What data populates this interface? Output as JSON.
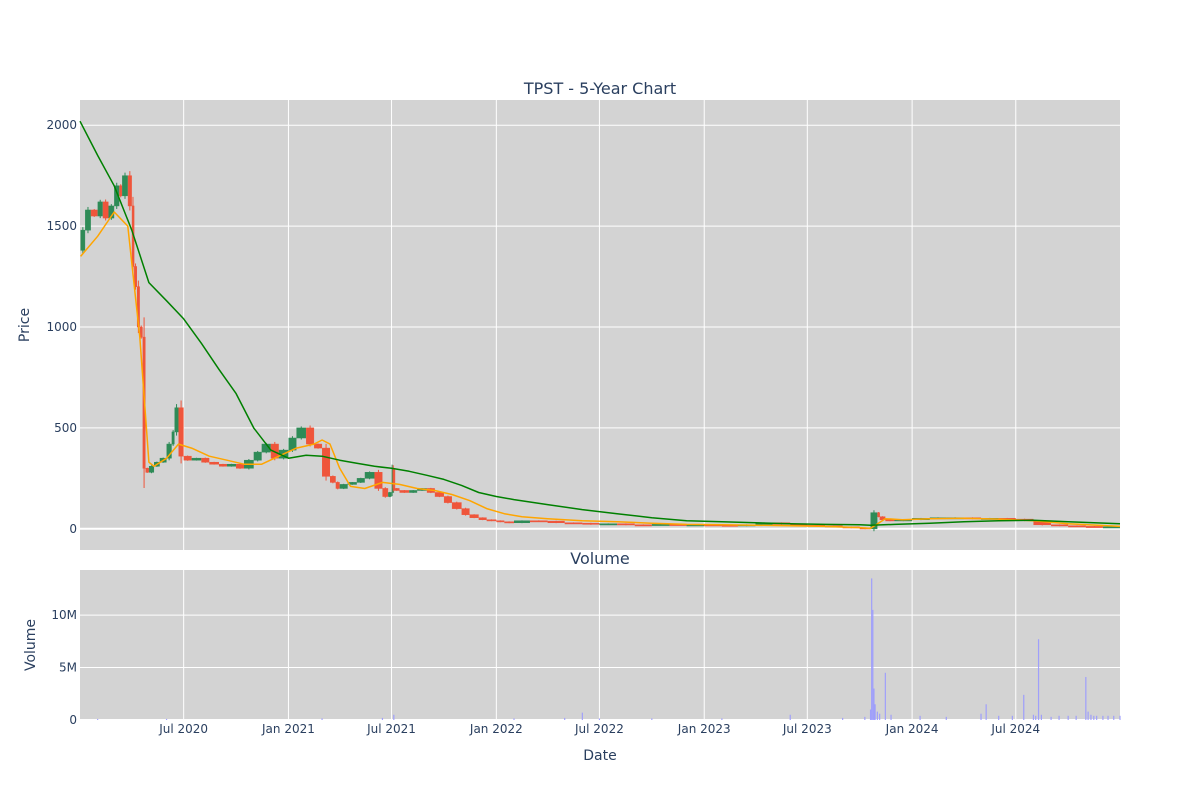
{
  "title": "TPST - 5-Year Chart",
  "volume_title": "Volume",
  "xlabel": "Date",
  "colors": {
    "plot_bg": "#d3d3d3",
    "grid": "#ffffff",
    "text": "#2a3f5f",
    "candle_up": "#2e8b57",
    "candle_down": "#ef553b",
    "ma_short": "#ffa500",
    "ma_long": "#008000",
    "volume_bar": "#9999ff"
  },
  "chart_data": [
    {
      "type": "line",
      "subtype": "candlestick-with-moving-averages",
      "title": "TPST - 5-Year Chart",
      "ylabel": "Price",
      "ylim": [
        -105,
        2125
      ],
      "yticks": [
        0,
        500,
        1000,
        1500,
        2000
      ],
      "ytick_labels": [
        "0",
        "500",
        "1000",
        "1500",
        "2000"
      ],
      "xlim": [
        "2020-01-01",
        "2024-12-31"
      ],
      "xticks": [
        "2020-07-01",
        "2021-01-01",
        "2021-07-01",
        "2022-01-01",
        "2022-07-01",
        "2023-01-01",
        "2023-07-01",
        "2024-01-01",
        "2024-07-01"
      ],
      "xtick_labels": [
        "Jul 2020",
        "Jan 2021",
        "Jul 2021",
        "Jan 2022",
        "Jul 2022",
        "Jan 2023",
        "Jul 2023",
        "Jan 2024",
        "Jul 2024"
      ],
      "grid": true,
      "series": [
        {
          "kind": "close",
          "x": [
            "2020-01-02",
            "2020-01-10",
            "2020-01-20",
            "2020-02-01",
            "2020-02-10",
            "2020-02-20",
            "2020-03-01",
            "2020-03-10",
            "2020-03-15",
            "2020-03-25",
            "2020-04-01",
            "2020-04-05",
            "2020-04-10",
            "2020-04-15",
            "2020-04-20",
            "2020-04-25",
            "2020-05-01",
            "2020-05-10",
            "2020-05-20",
            "2020-06-01",
            "2020-06-10",
            "2020-06-15",
            "2020-06-22",
            "2020-07-01",
            "2020-07-15",
            "2020-08-01",
            "2020-08-15",
            "2020-09-01",
            "2020-09-15",
            "2020-10-01",
            "2020-10-15",
            "2020-11-01",
            "2020-11-15",
            "2020-12-01",
            "2020-12-15",
            "2021-01-01",
            "2021-01-15",
            "2021-02-01",
            "2021-02-15",
            "2021-03-01",
            "2021-03-15",
            "2021-03-25",
            "2021-04-01",
            "2021-04-15",
            "2021-05-01",
            "2021-05-15",
            "2021-06-01",
            "2021-06-15",
            "2021-06-25",
            "2021-07-01",
            "2021-07-03",
            "2021-07-05",
            "2021-07-15",
            "2021-08-01",
            "2021-08-15",
            "2021-09-01",
            "2021-09-15",
            "2021-10-01",
            "2021-10-15",
            "2021-11-01",
            "2021-11-15",
            "2021-12-01",
            "2021-12-15",
            "2022-01-01",
            "2022-01-15",
            "2022-02-01",
            "2022-03-01",
            "2022-04-01",
            "2022-05-01",
            "2022-06-01",
            "2022-07-01",
            "2022-08-01",
            "2022-09-01",
            "2022-10-01",
            "2022-11-01",
            "2022-12-01",
            "2023-01-01",
            "2023-02-01",
            "2023-03-01",
            "2023-04-01",
            "2023-05-01",
            "2023-06-01",
            "2023-07-01",
            "2023-08-01",
            "2023-09-01",
            "2023-10-01",
            "2023-10-20",
            "2023-11-01",
            "2023-11-05",
            "2023-11-15",
            "2023-12-01",
            "2024-01-01",
            "2024-02-01",
            "2024-03-01",
            "2024-04-01",
            "2024-05-01",
            "2024-06-01",
            "2024-07-01",
            "2024-08-01",
            "2024-09-01",
            "2024-10-01",
            "2024-11-01",
            "2024-12-01",
            "2024-12-31"
          ],
          "y": [
            1380,
            1480,
            1580,
            1550,
            1620,
            1540,
            1600,
            1700,
            1650,
            1750,
            1600,
            1300,
            1200,
            1000,
            950,
            300,
            280,
            310,
            330,
            350,
            420,
            480,
            600,
            360,
            340,
            350,
            330,
            320,
            310,
            320,
            300,
            340,
            380,
            420,
            350,
            390,
            450,
            500,
            420,
            400,
            260,
            230,
            200,
            220,
            230,
            250,
            280,
            200,
            160,
            180,
            300,
            200,
            190,
            180,
            190,
            200,
            180,
            160,
            130,
            100,
            70,
            55,
            45,
            40,
            35,
            30,
            40,
            38,
            30,
            28,
            22,
            25,
            20,
            18,
            22,
            20,
            20,
            18,
            15,
            20,
            30,
            22,
            18,
            15,
            10,
            5,
            0,
            80,
            60,
            45,
            40,
            45,
            52,
            55,
            55,
            50,
            52,
            48,
            40,
            20,
            15,
            12,
            10,
            10
          ]
        },
        {
          "name": "",
          "kind": "ma_short",
          "x": [
            "2020-01-02",
            "2020-02-01",
            "2020-03-01",
            "2020-03-25",
            "2020-04-15",
            "2020-05-01",
            "2020-05-10",
            "2020-06-01",
            "2020-06-22",
            "2020-07-15",
            "2020-08-15",
            "2020-09-15",
            "2020-10-15",
            "2020-11-15",
            "2020-12-15",
            "2021-01-15",
            "2021-02-15",
            "2021-03-01",
            "2021-03-15",
            "2021-04-01",
            "2021-04-20",
            "2021-05-15",
            "2021-06-15",
            "2021-07-15",
            "2021-08-15",
            "2021-09-15",
            "2021-10-15",
            "2021-11-15",
            "2021-12-15",
            "2022-01-15",
            "2022-02-15",
            "2022-04-01",
            "2022-06-01",
            "2022-08-01",
            "2022-10-01",
            "2022-12-01",
            "2023-02-01",
            "2023-04-01",
            "2023-06-01",
            "2023-08-01",
            "2023-10-01",
            "2023-10-20",
            "2023-11-15",
            "2023-12-15",
            "2024-02-01",
            "2024-04-01",
            "2024-06-01",
            "2024-08-01",
            "2024-10-01",
            "2024-12-31"
          ],
          "y": [
            1350,
            1450,
            1570,
            1500,
            950,
            330,
            310,
            350,
            420,
            400,
            360,
            340,
            320,
            320,
            360,
            400,
            420,
            440,
            420,
            300,
            210,
            200,
            230,
            220,
            200,
            190,
            170,
            140,
            100,
            75,
            60,
            50,
            40,
            35,
            28,
            22,
            20,
            18,
            15,
            12,
            6,
            2,
            50,
            45,
            50,
            52,
            48,
            40,
            25,
            12
          ]
        },
        {
          "name": "",
          "kind": "ma_long",
          "x": [
            "2020-01-01",
            "2020-02-01",
            "2020-03-01",
            "2020-04-01",
            "2020-05-01",
            "2020-06-01",
            "2020-07-01",
            "2020-08-01",
            "2020-09-01",
            "2020-10-01",
            "2020-11-01",
            "2020-12-01",
            "2021-01-01",
            "2021-02-01",
            "2021-03-01",
            "2021-04-01",
            "2021-05-01",
            "2021-06-01",
            "2021-07-01",
            "2021-08-01",
            "2021-09-01",
            "2021-10-01",
            "2021-11-01",
            "2021-12-01",
            "2022-01-01",
            "2022-02-01",
            "2022-04-01",
            "2022-06-01",
            "2022-08-01",
            "2022-10-01",
            "2022-12-01",
            "2023-02-01",
            "2023-04-01",
            "2023-06-01",
            "2023-08-01",
            "2023-10-01",
            "2023-10-20",
            "2023-12-01",
            "2024-02-01",
            "2024-04-01",
            "2024-06-01",
            "2024-08-01",
            "2024-10-01",
            "2024-12-31"
          ],
          "y": [
            2020,
            1850,
            1700,
            1480,
            1220,
            1130,
            1040,
            920,
            790,
            670,
            500,
            390,
            350,
            365,
            360,
            340,
            325,
            310,
            300,
            285,
            265,
            245,
            215,
            180,
            160,
            145,
            120,
            95,
            75,
            55,
            40,
            35,
            30,
            25,
            22,
            20,
            18,
            22,
            28,
            35,
            40,
            42,
            35,
            25
          ]
        }
      ]
    },
    {
      "type": "bar",
      "title": "Volume",
      "ylabel": "Volume",
      "xlabel": "Date",
      "ylim": [
        0,
        14300000
      ],
      "yticks": [
        0,
        5000000,
        10000000
      ],
      "ytick_labels": [
        "0",
        "5M",
        "10M"
      ],
      "grid": true,
      "x": [
        "2020-02-01",
        "2020-06-01",
        "2021-03-01",
        "2021-06-15",
        "2021-07-05",
        "2022-02-01",
        "2022-05-01",
        "2022-06-01",
        "2022-07-01",
        "2022-10-01",
        "2023-02-01",
        "2023-06-01",
        "2023-09-01",
        "2023-10-10",
        "2023-10-20",
        "2023-10-22",
        "2023-10-24",
        "2023-10-26",
        "2023-10-28",
        "2023-11-01",
        "2023-11-05",
        "2023-11-15",
        "2023-11-25",
        "2024-01-15",
        "2024-03-01",
        "2024-05-01",
        "2024-05-10",
        "2024-06-01",
        "2024-06-25",
        "2024-07-15",
        "2024-08-01",
        "2024-08-05",
        "2024-08-10",
        "2024-08-15",
        "2024-09-01",
        "2024-09-15",
        "2024-10-01",
        "2024-10-15",
        "2024-11-01",
        "2024-11-05",
        "2024-11-10",
        "2024-11-15",
        "2024-11-20",
        "2024-12-01",
        "2024-12-10",
        "2024-12-20",
        "2024-12-31"
      ],
      "values": [
        100000,
        100000,
        150000,
        200000,
        500000,
        150000,
        200000,
        700000,
        150000,
        150000,
        150000,
        500000,
        200000,
        300000,
        1000000,
        13500000,
        10500000,
        3000000,
        1500000,
        800000,
        600000,
        4500000,
        500000,
        400000,
        300000,
        600000,
        1500000,
        400000,
        400000,
        2400000,
        500000,
        400000,
        7700000,
        500000,
        300000,
        400000,
        400000,
        400000,
        4100000,
        800000,
        500000,
        400000,
        400000,
        400000,
        400000,
        400000,
        400000
      ]
    }
  ]
}
